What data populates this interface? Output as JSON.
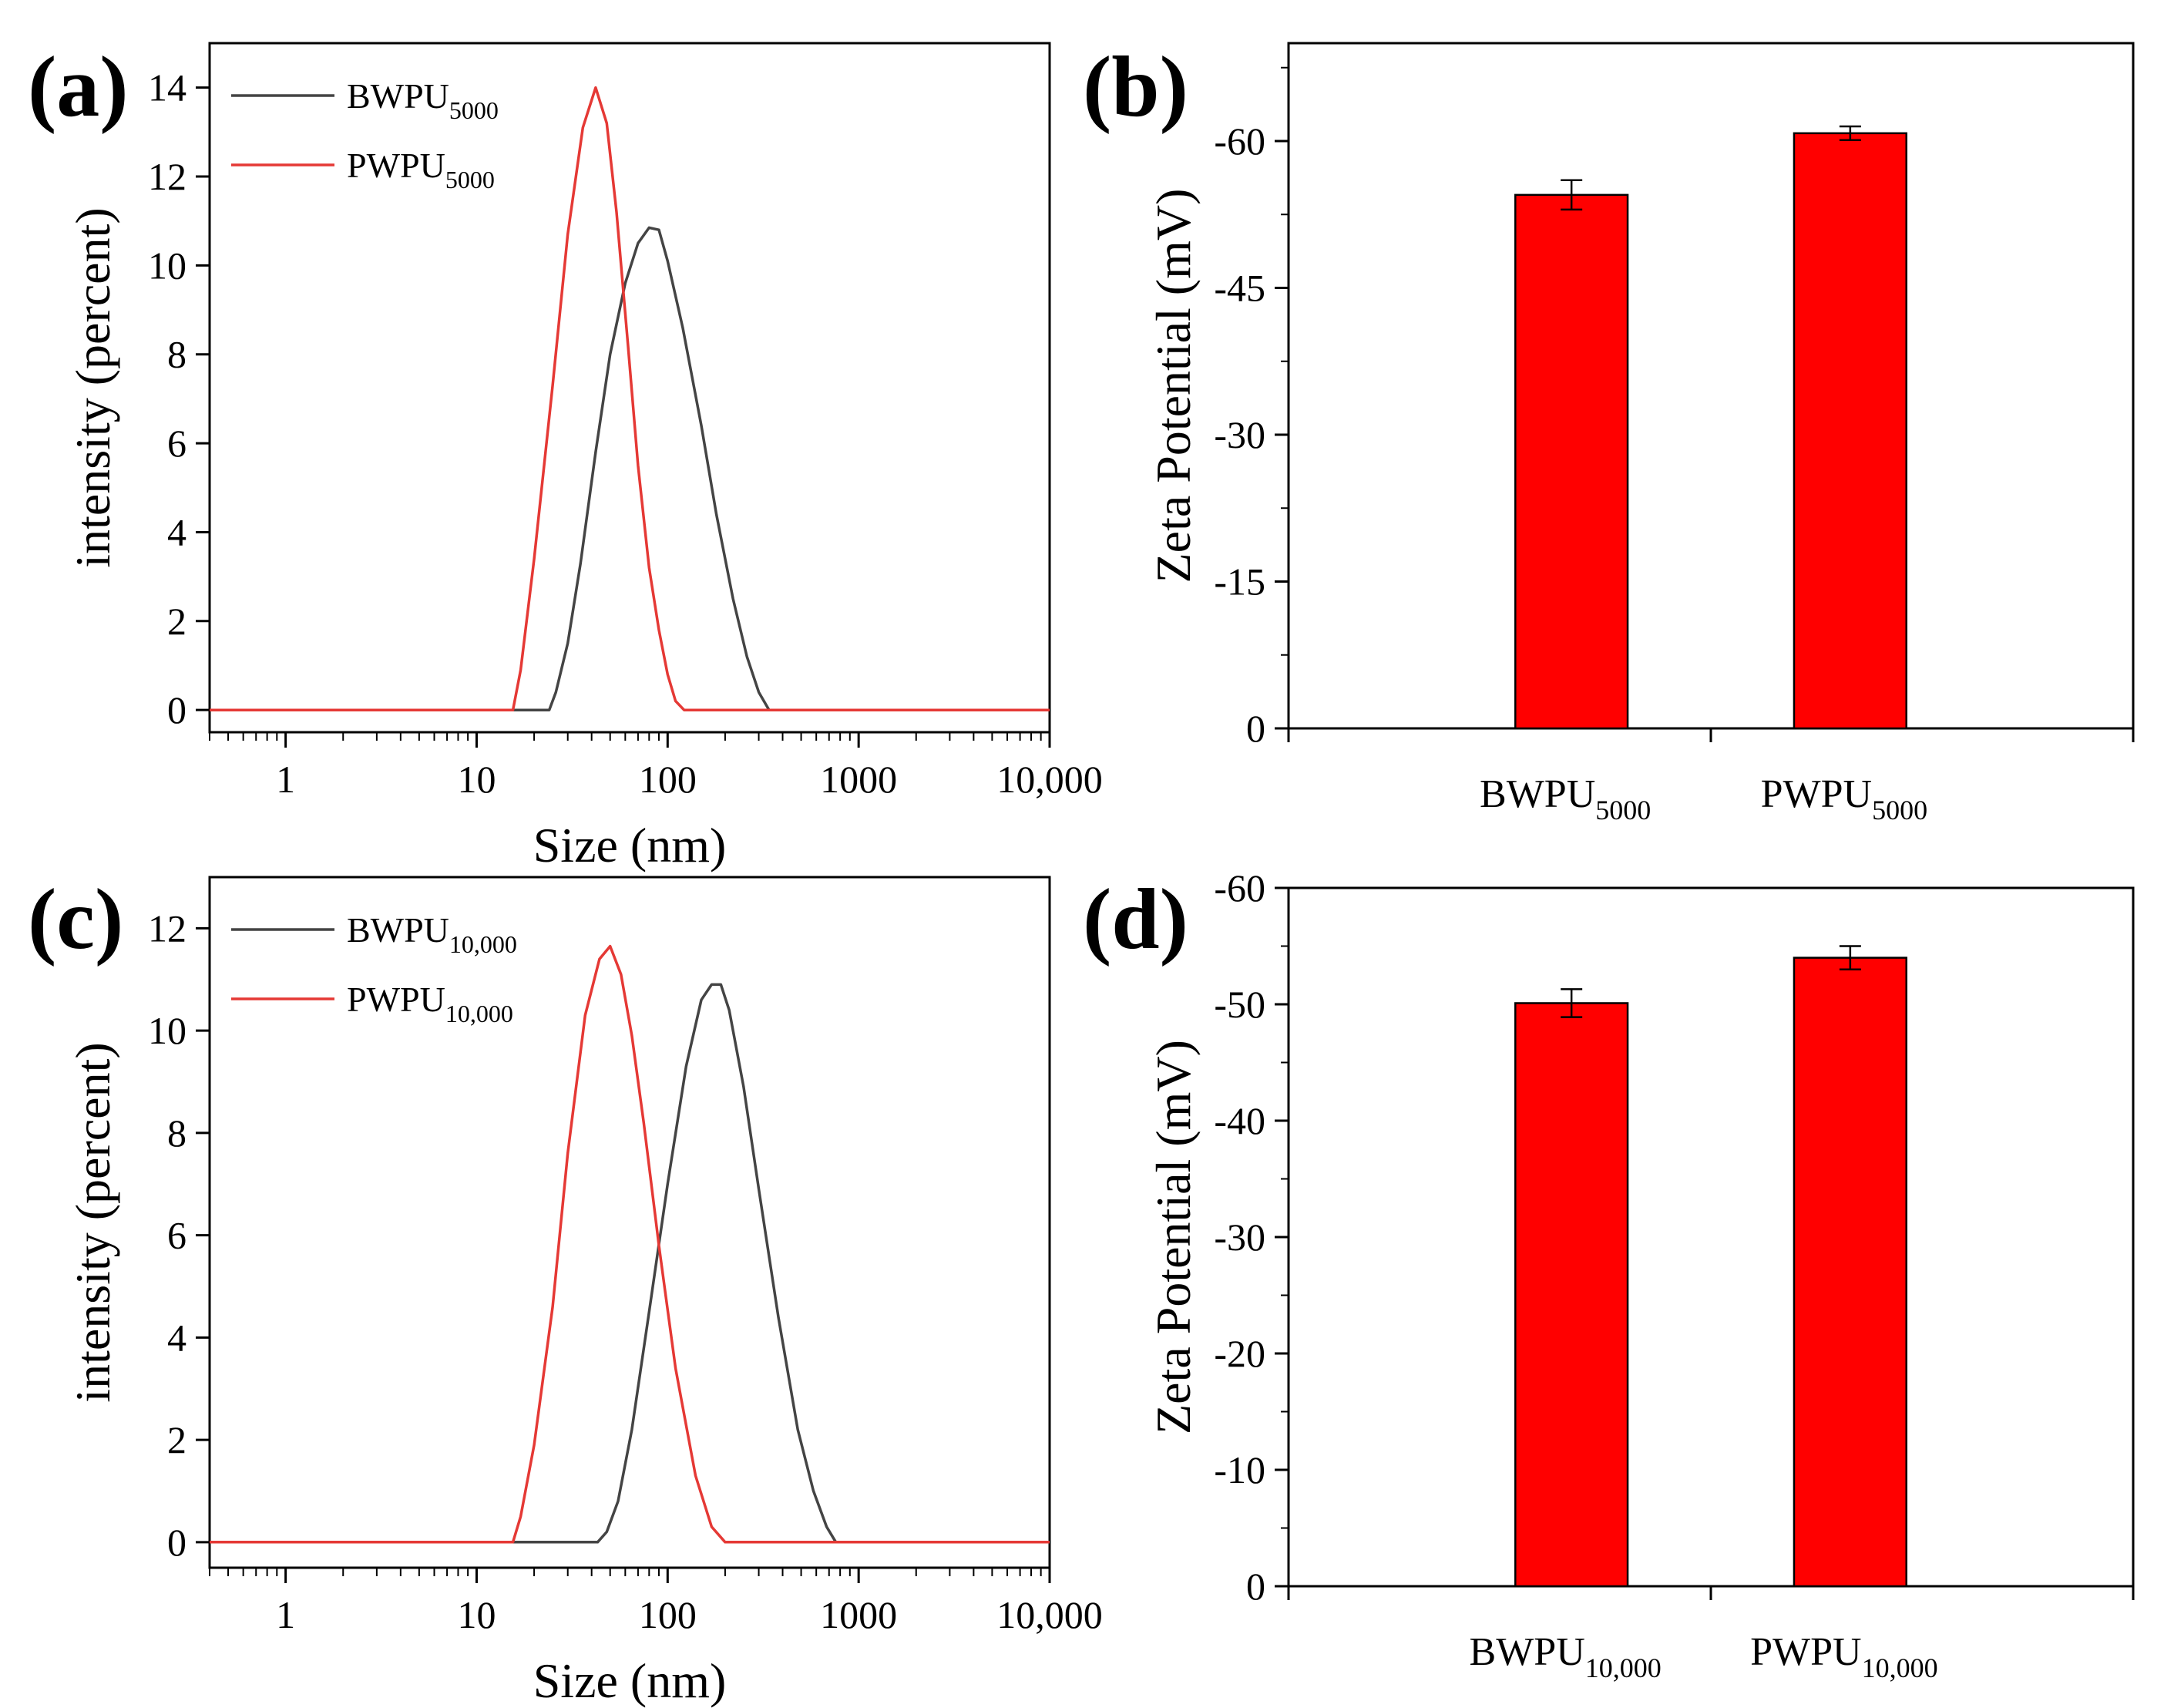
{
  "chart_data": [
    {
      "panel": "(a)",
      "type": "line",
      "xscale": "log",
      "xlim": [
        0.4,
        10000
      ],
      "ylim": [
        -0.5,
        15
      ],
      "xlabel": "Size (nm)",
      "ylabel": "intensity (percent)",
      "xticks": [
        1,
        10,
        100,
        1000,
        10000
      ],
      "xtick_labels": [
        "1",
        "10",
        "100",
        "1000",
        "10,000"
      ],
      "yticks": [
        0,
        2,
        4,
        6,
        8,
        10,
        12,
        14
      ],
      "legend_position": "top-left",
      "series": [
        {
          "name": "BWPU",
          "sub": "5000",
          "color": "#444444",
          "x": [
            0.4,
            24,
            26,
            30,
            35,
            42,
            50,
            60,
            70,
            80,
            90,
            100,
            120,
            150,
            180,
            220,
            260,
            300,
            340,
            10000
          ],
          "y": [
            0,
            0,
            0.4,
            1.5,
            3.3,
            5.8,
            8.0,
            9.6,
            10.5,
            10.85,
            10.8,
            10.1,
            8.6,
            6.4,
            4.4,
            2.5,
            1.2,
            0.4,
            0,
            0
          ]
        },
        {
          "name": "PWPU",
          "sub": "5000",
          "color": "#e53935",
          "x": [
            0.4,
            15.5,
            17,
            20,
            25,
            30,
            36,
            42,
            48,
            54,
            62,
            70,
            80,
            90,
            100,
            110,
            122,
            10000
          ],
          "y": [
            0,
            0,
            0.9,
            3.4,
            7.3,
            10.7,
            13.1,
            14.0,
            13.2,
            11.2,
            8.2,
            5.5,
            3.2,
            1.8,
            0.8,
            0.2,
            0,
            0
          ]
        }
      ]
    },
    {
      "panel": "(b)",
      "type": "bar",
      "categories": [
        {
          "main": "BWPU",
          "sub": "5000"
        },
        {
          "main": "PWPU",
          "sub": "5000"
        }
      ],
      "values": [
        -54.5,
        -60.8
      ],
      "errors": [
        1.5,
        0.7
      ],
      "ylabel": "Zeta Potential (mV)",
      "ylim": [
        0,
        -70
      ],
      "yticks": [
        0,
        -15,
        -30,
        -45,
        -60
      ],
      "ytick_labels": [
        "0",
        "-15",
        "-30",
        "-45",
        "-60"
      ],
      "bar_color": "#ff0000"
    },
    {
      "panel": "(c)",
      "type": "line",
      "xscale": "log",
      "xlim": [
        0.4,
        10000
      ],
      "ylim": [
        -0.5,
        13
      ],
      "xlabel": "Size (nm)",
      "ylabel": "intensity (percent)",
      "xticks": [
        1,
        10,
        100,
        1000,
        10000
      ],
      "xtick_labels": [
        "1",
        "10",
        "100",
        "1000",
        "10,000"
      ],
      "yticks": [
        0,
        2,
        4,
        6,
        8,
        10,
        12
      ],
      "legend_position": "top-left",
      "series": [
        {
          "name": "BWPU",
          "sub": "10,000",
          "color": "#444444",
          "x": [
            0.4,
            43,
            48,
            55,
            65,
            80,
            100,
            125,
            150,
            170,
            190,
            210,
            250,
            300,
            380,
            480,
            580,
            680,
            760,
            10000
          ],
          "y": [
            0,
            0,
            0.2,
            0.8,
            2.2,
            4.5,
            7.0,
            9.3,
            10.6,
            10.9,
            10.9,
            10.4,
            8.9,
            6.9,
            4.4,
            2.2,
            1.0,
            0.3,
            0,
            0
          ]
        },
        {
          "name": "PWPU",
          "sub": "10,000",
          "color": "#e53935",
          "x": [
            0.4,
            15.5,
            17,
            20,
            25,
            30,
            37,
            44,
            50,
            57,
            65,
            75,
            90,
            110,
            140,
            170,
            200,
            10000
          ],
          "y": [
            0,
            0,
            0.5,
            1.9,
            4.6,
            7.6,
            10.3,
            11.4,
            11.65,
            11.1,
            9.9,
            8.2,
            5.8,
            3.4,
            1.3,
            0.3,
            0,
            0
          ]
        }
      ]
    },
    {
      "panel": "(d)",
      "type": "bar",
      "categories": [
        {
          "main": "BWPU",
          "sub": "10,000"
        },
        {
          "main": "PWPU",
          "sub": "10,000"
        }
      ],
      "values": [
        -50.1,
        -54.0
      ],
      "errors": [
        1.2,
        1.0
      ],
      "ylabel": "Zeta Potential (mV)",
      "ylim": [
        0,
        -60
      ],
      "yticks": [
        0,
        -10,
        -20,
        -30,
        -40,
        -50,
        -60
      ],
      "ytick_labels": [
        "0",
        "-10",
        "-20",
        "-30",
        "-40",
        "-50",
        "-60"
      ],
      "bar_color": "#ff0000"
    }
  ]
}
